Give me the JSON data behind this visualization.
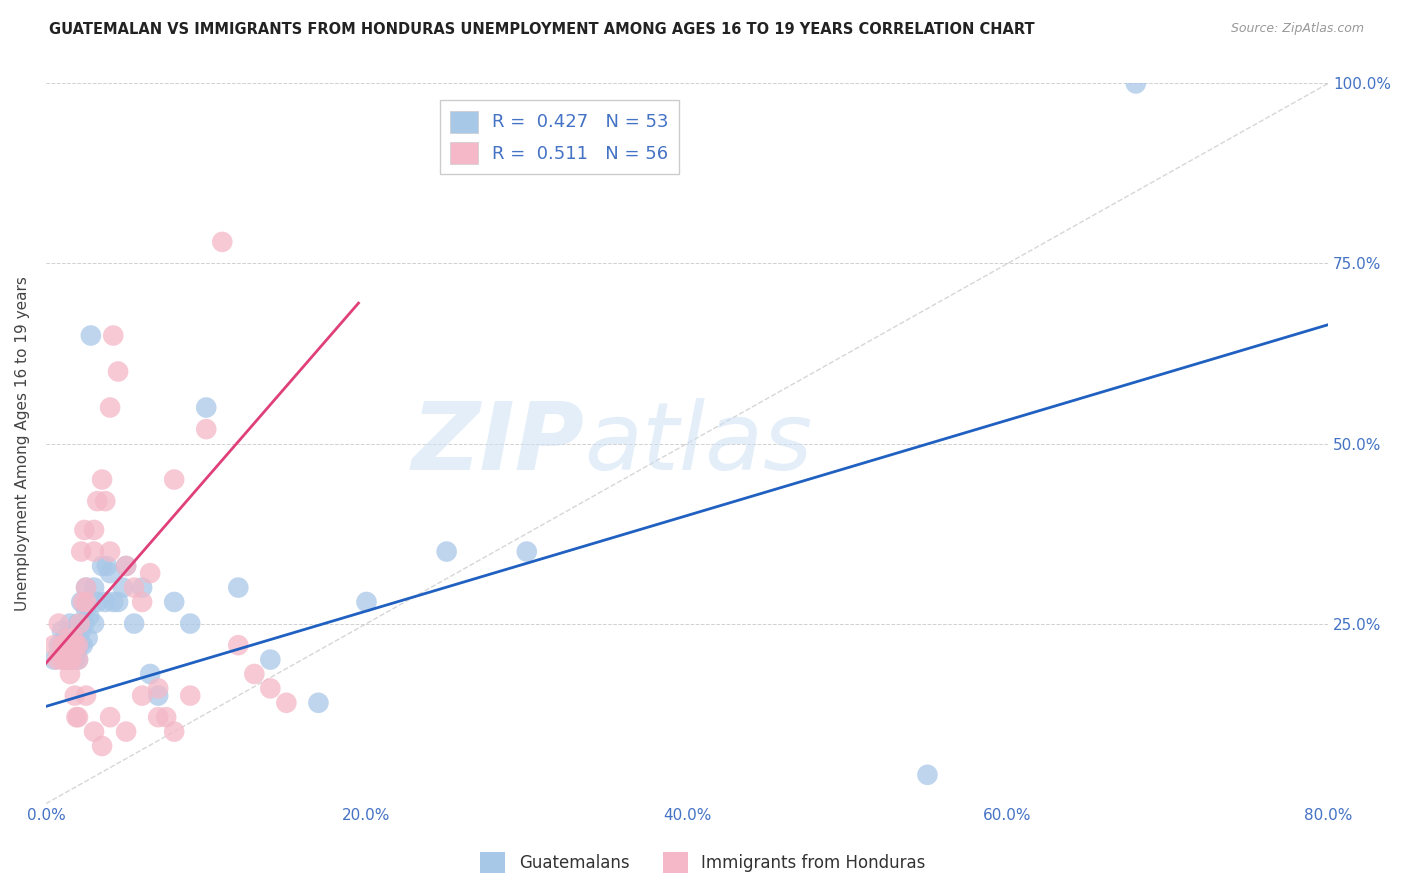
{
  "title": "GUATEMALAN VS IMMIGRANTS FROM HONDURAS UNEMPLOYMENT AMONG AGES 16 TO 19 YEARS CORRELATION CHART",
  "source": "Source: ZipAtlas.com",
  "ylabel": "Unemployment Among Ages 16 to 19 years",
  "xlim": [
    0,
    0.8
  ],
  "ylim": [
    0,
    1.0
  ],
  "xticks": [
    0.0,
    0.1,
    0.2,
    0.3,
    0.4,
    0.5,
    0.6,
    0.7,
    0.8
  ],
  "xticklabels": [
    "0.0%",
    "",
    "20.0%",
    "",
    "40.0%",
    "",
    "60.0%",
    "",
    "80.0%"
  ],
  "yticks": [
    0.0,
    0.25,
    0.5,
    0.75,
    1.0
  ],
  "yticklabels_right": [
    "",
    "25.0%",
    "50.0%",
    "75.0%",
    "100.0%"
  ],
  "blue_color": "#a8c8e8",
  "pink_color": "#f4b8c8",
  "blue_line_color": "#2060c0",
  "pink_line_color": "#e0407a",
  "legend_R_blue": "0.427",
  "legend_N_blue": "53",
  "legend_R_pink": "0.511",
  "legend_N_pink": "56",
  "watermark_zip": "ZIP",
  "watermark_atlas": "atlas",
  "blue_line_x0": 0.0,
  "blue_line_y0": 0.135,
  "blue_line_x1": 0.8,
  "blue_line_y1": 0.665,
  "pink_line_x0": 0.0,
  "pink_line_y0": 0.195,
  "pink_line_x1": 0.195,
  "pink_line_y1": 0.695,
  "diag_line_x": [
    0.0,
    0.8
  ],
  "diag_line_y": [
    0.0,
    1.0
  ],
  "blue_scatter_x": [
    0.005,
    0.008,
    0.01,
    0.012,
    0.012,
    0.013,
    0.015,
    0.015,
    0.015,
    0.016,
    0.017,
    0.018,
    0.018,
    0.019,
    0.02,
    0.02,
    0.02,
    0.021,
    0.022,
    0.022,
    0.023,
    0.024,
    0.025,
    0.025,
    0.026,
    0.027,
    0.028,
    0.03,
    0.03,
    0.032,
    0.035,
    0.037,
    0.038,
    0.04,
    0.042,
    0.045,
    0.048,
    0.05,
    0.055,
    0.06,
    0.065,
    0.07,
    0.08,
    0.09,
    0.1,
    0.12,
    0.14,
    0.17,
    0.2,
    0.25,
    0.3,
    0.55,
    0.68
  ],
  "blue_scatter_y": [
    0.2,
    0.22,
    0.24,
    0.2,
    0.23,
    0.22,
    0.21,
    0.25,
    0.2,
    0.23,
    0.22,
    0.2,
    0.24,
    0.21,
    0.2,
    0.23,
    0.25,
    0.22,
    0.24,
    0.28,
    0.22,
    0.25,
    0.27,
    0.3,
    0.23,
    0.26,
    0.65,
    0.25,
    0.3,
    0.28,
    0.33,
    0.28,
    0.33,
    0.32,
    0.28,
    0.28,
    0.3,
    0.33,
    0.25,
    0.3,
    0.18,
    0.15,
    0.28,
    0.25,
    0.55,
    0.3,
    0.2,
    0.14,
    0.28,
    0.35,
    0.35,
    0.04,
    1.0
  ],
  "pink_scatter_x": [
    0.005,
    0.007,
    0.008,
    0.01,
    0.01,
    0.012,
    0.013,
    0.013,
    0.014,
    0.015,
    0.015,
    0.016,
    0.017,
    0.018,
    0.018,
    0.019,
    0.02,
    0.02,
    0.021,
    0.022,
    0.023,
    0.024,
    0.025,
    0.025,
    0.03,
    0.03,
    0.032,
    0.035,
    0.037,
    0.04,
    0.04,
    0.042,
    0.045,
    0.05,
    0.055,
    0.06,
    0.065,
    0.07,
    0.075,
    0.08,
    0.09,
    0.1,
    0.11,
    0.12,
    0.13,
    0.14,
    0.15,
    0.02,
    0.025,
    0.03,
    0.035,
    0.04,
    0.05,
    0.06,
    0.07,
    0.08
  ],
  "pink_scatter_y": [
    0.22,
    0.2,
    0.25,
    0.2,
    0.22,
    0.2,
    0.2,
    0.22,
    0.23,
    0.18,
    0.2,
    0.2,
    0.23,
    0.22,
    0.15,
    0.12,
    0.2,
    0.22,
    0.25,
    0.35,
    0.28,
    0.38,
    0.28,
    0.3,
    0.35,
    0.38,
    0.42,
    0.45,
    0.42,
    0.55,
    0.35,
    0.65,
    0.6,
    0.33,
    0.3,
    0.28,
    0.32,
    0.16,
    0.12,
    0.45,
    0.15,
    0.52,
    0.78,
    0.22,
    0.18,
    0.16,
    0.14,
    0.12,
    0.15,
    0.1,
    0.08,
    0.12,
    0.1,
    0.15,
    0.12,
    0.1
  ]
}
